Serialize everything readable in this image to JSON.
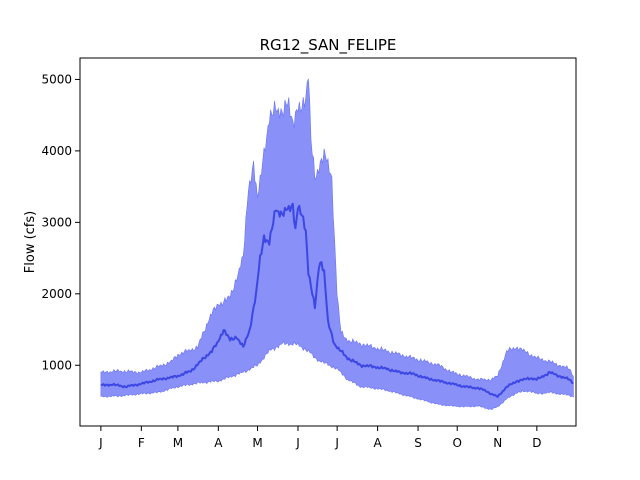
{
  "chart_data": {
    "type": "area",
    "title": "RG12_SAN_FELIPE",
    "xlabel": "",
    "ylabel": "Flow (cfs)",
    "xlim": [
      -15,
      365
    ],
    "ylim": [
      150,
      5300
    ],
    "x_ticks": [
      {
        "day": 1,
        "label": "J"
      },
      {
        "day": 32,
        "label": "F"
      },
      {
        "day": 60,
        "label": "M"
      },
      {
        "day": 91,
        "label": "A"
      },
      {
        "day": 121,
        "label": "M"
      },
      {
        "day": 152,
        "label": "J"
      },
      {
        "day": 182,
        "label": "J"
      },
      {
        "day": 213,
        "label": "A"
      },
      {
        "day": 244,
        "label": "S"
      },
      {
        "day": 274,
        "label": "O"
      },
      {
        "day": 305,
        "label": "N"
      },
      {
        "day": 335,
        "label": "D"
      }
    ],
    "y_ticks": [
      1000,
      2000,
      3000,
      4000,
      5000
    ],
    "grid": false,
    "colors": {
      "band": "#6b74f5",
      "median": "#3d47e6"
    },
    "series": [
      {
        "role": "band_upper",
        "x": [
          1,
          15,
          32,
          45,
          55,
          60,
          75,
          85,
          91,
          100,
          110,
          114,
          118,
          121,
          125,
          130,
          135,
          140,
          145,
          148,
          150,
          152,
          155,
          158,
          160,
          162,
          165,
          170,
          172,
          175,
          178,
          182,
          185,
          190,
          200,
          210,
          220,
          230,
          240,
          250,
          260,
          270,
          280,
          290,
          300,
          305,
          312,
          320,
          330,
          335,
          345,
          352,
          360,
          363
        ],
        "values": [
          900,
          920,
          900,
          980,
          1050,
          1150,
          1250,
          1700,
          1850,
          1950,
          2500,
          3500,
          3800,
          3300,
          3900,
          4400,
          4650,
          4500,
          4700,
          4400,
          4500,
          4550,
          4600,
          4800,
          5100,
          4150,
          3600,
          3900,
          3950,
          3800,
          3600,
          2000,
          1450,
          1350,
          1300,
          1250,
          1200,
          1150,
          1100,
          1050,
          1000,
          900,
          850,
          800,
          800,
          850,
          1200,
          1250,
          1150,
          1100,
          1050,
          1000,
          950,
          850
        ]
      },
      {
        "role": "band_lower",
        "x": [
          1,
          15,
          32,
          45,
          60,
          75,
          91,
          110,
          121,
          130,
          140,
          150,
          155,
          160,
          165,
          170,
          182,
          190,
          200,
          210,
          220,
          230,
          240,
          250,
          260,
          270,
          280,
          290,
          300,
          305,
          312,
          320,
          330,
          335,
          345,
          352,
          360,
          363
        ],
        "values": [
          560,
          570,
          600,
          620,
          700,
          750,
          780,
          900,
          1000,
          1200,
          1300,
          1300,
          1250,
          1200,
          1100,
          1050,
          950,
          800,
          700,
          680,
          650,
          600,
          550,
          500,
          450,
          430,
          420,
          430,
          380,
          420,
          530,
          620,
          640,
          600,
          620,
          600,
          580,
          560
        ]
      },
      {
        "role": "median",
        "x": [
          1,
          10,
          20,
          32,
          45,
          55,
          60,
          70,
          80,
          86,
          90,
          95,
          100,
          105,
          110,
          115,
          120,
          123,
          126,
          130,
          135,
          140,
          145,
          148,
          150,
          152,
          155,
          158,
          160,
          165,
          168,
          170,
          172,
          175,
          180,
          182,
          190,
          200,
          210,
          220,
          230,
          240,
          250,
          260,
          270,
          280,
          290,
          295,
          300,
          305,
          312,
          320,
          330,
          335,
          345,
          352,
          360,
          363
        ],
        "values": [
          720,
          730,
          700,
          740,
          800,
          830,
          850,
          920,
          1100,
          1200,
          1300,
          1500,
          1350,
          1400,
          1250,
          1500,
          2000,
          2500,
          2800,
          2700,
          3200,
          3100,
          3200,
          3250,
          2900,
          3200,
          3100,
          2900,
          2300,
          1800,
          2400,
          2450,
          2300,
          1600,
          1300,
          1250,
          1100,
          1000,
          980,
          950,
          900,
          880,
          820,
          780,
          740,
          700,
          680,
          650,
          600,
          560,
          700,
          780,
          820,
          800,
          900,
          850,
          800,
          750
        ]
      }
    ]
  }
}
